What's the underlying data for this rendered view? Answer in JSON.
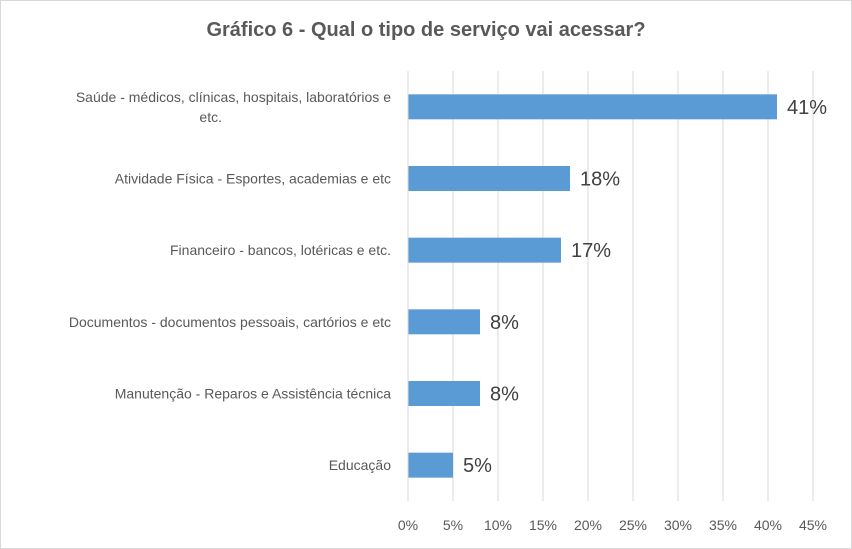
{
  "chart_data": {
    "type": "bar",
    "orientation": "horizontal",
    "title": "Gráfico 6 - Qual o tipo de serviço vai acessar?",
    "categories": [
      [
        "Saúde - médicos, clínicas, hospitais, laboratórios e",
        "etc."
      ],
      [
        "Atividade Física - Esportes, academias e etc"
      ],
      [
        "Financeiro - bancos, lotéricas e etc."
      ],
      [
        "Documentos - documentos pessoais, cartórios e etc"
      ],
      [
        "Manutenção - Reparos e Assistência técnica"
      ],
      [
        "Educação"
      ]
    ],
    "values": [
      0.41,
      0.18,
      0.17,
      0.08,
      0.08,
      0.05
    ],
    "data_labels": [
      "41%",
      "18%",
      "17%",
      "8%",
      "8%",
      "5%"
    ],
    "xlim": [
      0,
      0.45
    ],
    "x_ticks": [
      0,
      0.05,
      0.1,
      0.15,
      0.2,
      0.25,
      0.3,
      0.35,
      0.4,
      0.45
    ],
    "x_tick_labels": [
      "0%",
      "5%",
      "10%",
      "15%",
      "20%",
      "25%",
      "30%",
      "35%",
      "40%",
      "45%"
    ],
    "grid": true,
    "bar_color": "#5b9bd5",
    "xlabel": "",
    "ylabel": ""
  }
}
